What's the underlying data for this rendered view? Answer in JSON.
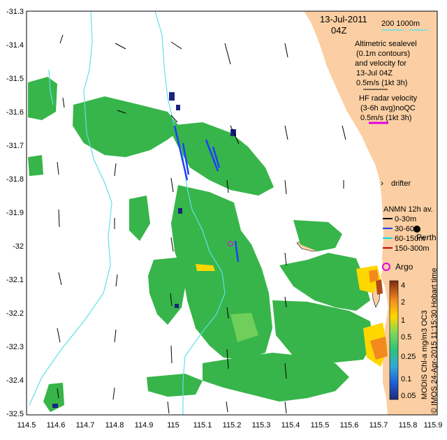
{
  "map": {
    "date_line1": "13-Jul-2011",
    "date_line2": "04Z",
    "bathy_legend": "200  1000m",
    "altimetry_lines": [
      "Altimetric sealevel",
      "(0.1m contours)",
      "and velocity for",
      "13-Jul 04Z",
      "0.5m/s (1kt 3h)"
    ],
    "hf_lines": [
      "HF radar velocity",
      "(3-6h avg)noQC",
      "0.5m/s (1kt 3h)"
    ],
    "drifter_label": "drifter",
    "anmn_title": "ANMN 12h av.",
    "anmn_items": [
      {
        "label": "0-30m",
        "color": "#000000"
      },
      {
        "label": "30-60m",
        "color": "#1f3fff"
      },
      {
        "label": "60-150m",
        "color": "#00e0e0"
      },
      {
        "label": "150-300m",
        "color": "#d00000"
      }
    ],
    "city_label": "Perth",
    "argo_label": "Argo",
    "colorbar": {
      "ticks": [
        "4",
        "2",
        "1",
        "0.5",
        "0.25",
        "0.1",
        "0.05"
      ],
      "title": "MODIS Chl-a mg/m3 OC3"
    },
    "credit": "© IMOS 24-Apr-2015 11:15:30 Hobart time",
    "x_ticks": [
      "114.5",
      "114.6",
      "114.7",
      "114.8",
      "114.9",
      "115",
      "115.1",
      "115.2",
      "115.3",
      "115.4",
      "115.5",
      "115.6",
      "115.7",
      "115.8",
      "115.9"
    ],
    "y_ticks": [
      "-31.3",
      "-31.4",
      "-31.5",
      "-31.6",
      "-31.7",
      "-31.8",
      "-31.9",
      "-32",
      "-32.1",
      "-32.2",
      "-32.3",
      "-32.4",
      "-32.5"
    ],
    "colors": {
      "land": "#fbcfa3",
      "chl_green": "#37b54a",
      "chl_green_light": "#6fcf5a",
      "bathy": "#5fe0ea",
      "hf_arrow": "#e000e0",
      "current_arrow": "#1f3fff"
    }
  }
}
